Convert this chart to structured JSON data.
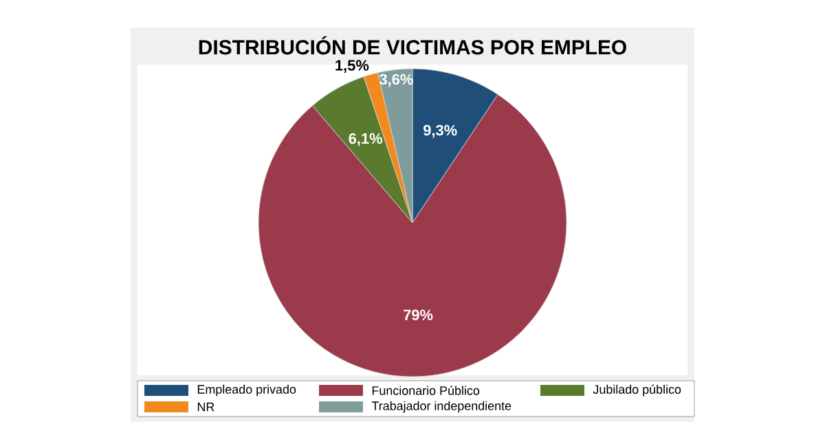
{
  "chart_data": {
    "type": "pie",
    "title": "DISTRIBUCIÓN DE VICTIMAS POR EMPLEO",
    "categories": [
      "Empleado privado",
      "Funcionario Público",
      "Jubilado público",
      "NR",
      "Trabajador independiente"
    ],
    "values": [
      9.3,
      79,
      6.1,
      1.5,
      3.6
    ],
    "value_labels": [
      "9,3%",
      "79%",
      "6,1%",
      "1,5%",
      "3,6%"
    ],
    "colors": [
      "#1f4e79",
      "#9b3a4a",
      "#5a7a2e",
      "#f08a1c",
      "#7f9c9c"
    ],
    "legend": "bottom"
  }
}
